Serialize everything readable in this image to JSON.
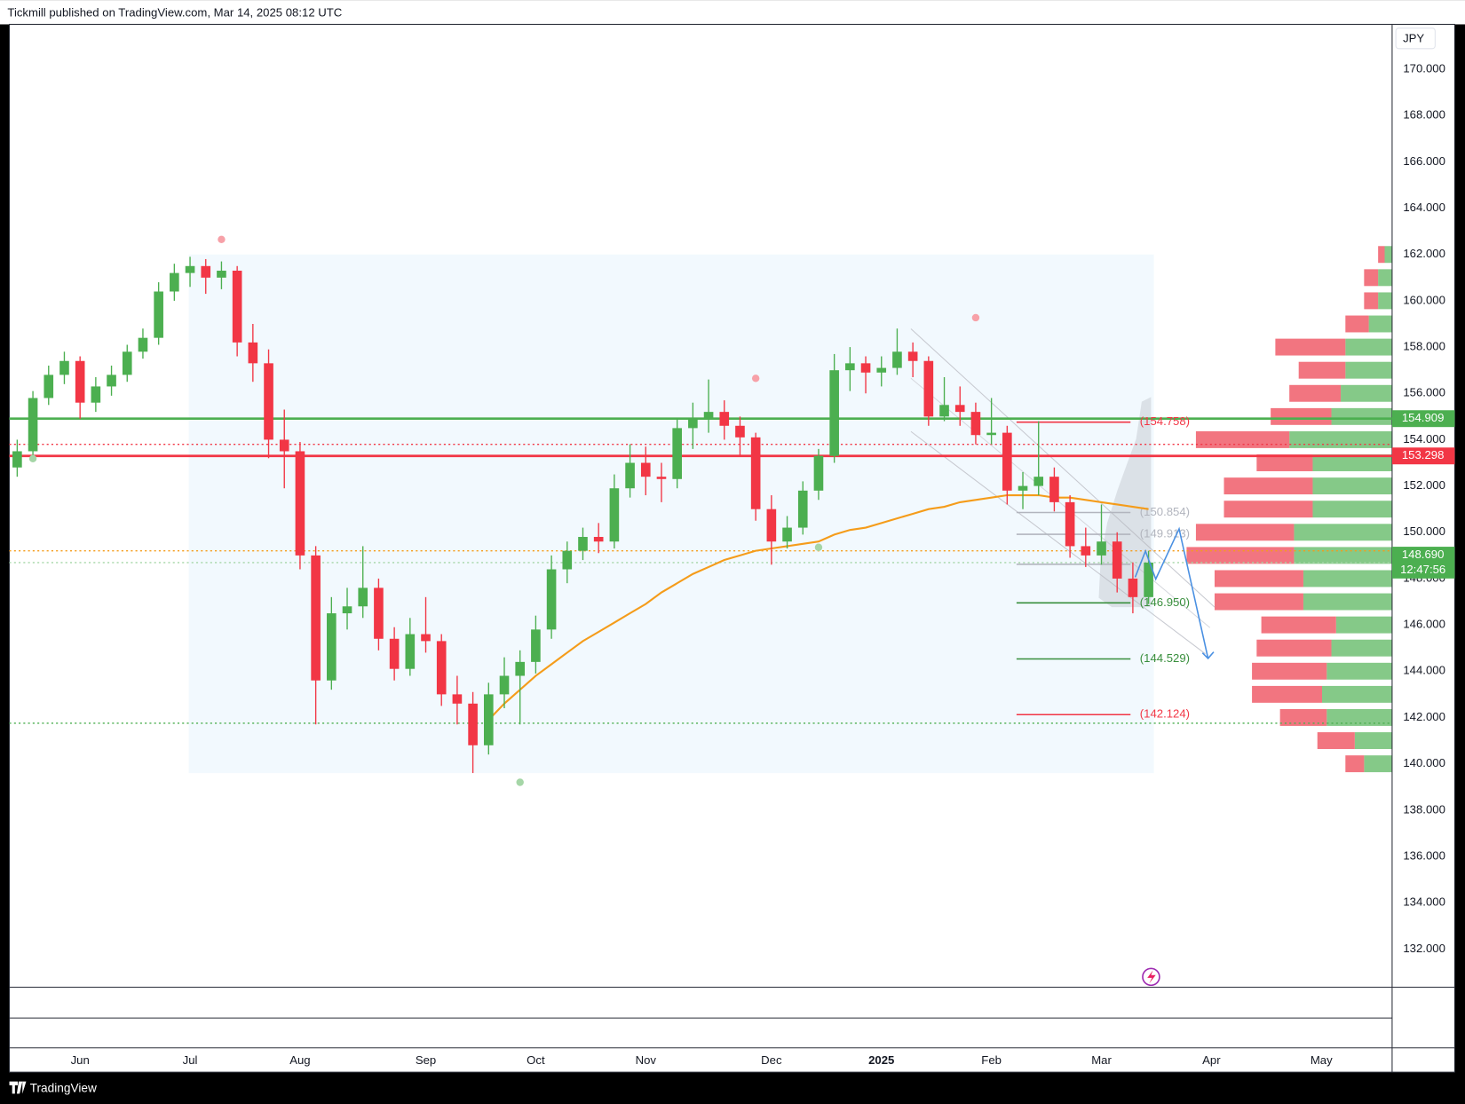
{
  "chart_data": {
    "type": "candlestick",
    "header": "Tickmill published on TradingView.com, Mar 14, 2025 08:12 UTC",
    "currency": "JPY",
    "brand": "TradingView",
    "categories": [
      null,
      null,
      null,
      null,
      "Jun",
      null,
      null,
      null,
      null,
      null,
      null,
      "Jul",
      null,
      null,
      null,
      null,
      null,
      null,
      "Aug",
      null,
      null,
      null,
      null,
      null,
      null,
      null,
      "Sep",
      null,
      null,
      null,
      null,
      null,
      null,
      "Oct",
      null,
      null,
      null,
      null,
      null,
      null,
      "Nov",
      null,
      null,
      null,
      null,
      null,
      null,
      null,
      "Dec",
      null,
      null,
      null,
      null,
      null,
      null,
      "2025",
      null,
      null,
      null,
      null,
      null,
      null,
      "Feb",
      null,
      null,
      null,
      null,
      null,
      null,
      "Mar",
      null,
      null,
      null,
      null,
      null,
      null,
      "Apr",
      null,
      null,
      null,
      null,
      null,
      null,
      "May",
      null,
      null,
      null,
      null
    ],
    "open": [
      152.8,
      153.5,
      155.8,
      156.8,
      157.4,
      155.6,
      156.3,
      156.8,
      157.8,
      158.4,
      160.4,
      161.2,
      161.5,
      161.0,
      161.3,
      158.2,
      157.3,
      154.0,
      153.5,
      149.0,
      143.6,
      146.5,
      146.8,
      147.6,
      145.4,
      144.1,
      145.6,
      145.3,
      143.0,
      142.6,
      140.8,
      143.0,
      143.8,
      144.4,
      145.8,
      148.4,
      149.2,
      149.8,
      149.6,
      151.9,
      153.0,
      152.4,
      152.3,
      154.5,
      154.9,
      155.2,
      154.6,
      154.1,
      151.0,
      149.6,
      150.2,
      151.8,
      153.3,
      157.0,
      157.3,
      156.9,
      157.1,
      157.8,
      157.4,
      155.0,
      155.5,
      155.2,
      154.2,
      154.3,
      151.8,
      152.0,
      152.4,
      151.3,
      149.4,
      149.0,
      149.6,
      148.0,
      147.2,
      null,
      null,
      null,
      null,
      null,
      null,
      null,
      null,
      null,
      null,
      null,
      null,
      null,
      null,
      null
    ],
    "high": [
      154.0,
      156.1,
      157.2,
      157.8,
      157.6,
      156.7,
      157.2,
      158.1,
      158.8,
      160.8,
      161.6,
      161.9,
      161.8,
      161.7,
      161.5,
      159.0,
      157.9,
      155.3,
      153.9,
      149.4,
      147.2,
      147.6,
      149.4,
      148.0,
      145.9,
      146.3,
      147.2,
      145.6,
      143.8,
      143.1,
      143.5,
      144.6,
      144.9,
      146.4,
      149.0,
      149.6,
      150.2,
      150.4,
      152.5,
      153.8,
      153.7,
      153.0,
      154.9,
      155.6,
      156.6,
      155.7,
      155.0,
      154.3,
      151.6,
      150.7,
      152.2,
      153.6,
      157.7,
      158.0,
      157.6,
      157.6,
      158.8,
      158.2,
      157.6,
      156.7,
      156.3,
      155.6,
      155.8,
      154.6,
      152.6,
      154.8,
      152.8,
      151.6,
      150.2,
      151.2,
      150.0,
      148.7,
      149.2,
      null,
      null,
      null,
      null,
      null,
      null,
      null,
      null,
      null,
      null,
      null,
      null,
      null,
      null,
      null
    ],
    "low": [
      152.4,
      153.2,
      155.5,
      156.4,
      154.9,
      155.2,
      155.9,
      156.5,
      157.5,
      158.1,
      160.0,
      160.6,
      160.3,
      160.5,
      157.6,
      156.5,
      153.2,
      151.9,
      148.4,
      141.7,
      143.2,
      145.8,
      146.3,
      144.9,
      143.6,
      143.8,
      144.8,
      142.5,
      141.7,
      139.6,
      140.4,
      142.4,
      141.7,
      143.9,
      145.4,
      147.8,
      148.8,
      149.1,
      149.3,
      151.5,
      151.6,
      151.3,
      151.9,
      153.6,
      154.3,
      154.0,
      153.3,
      150.5,
      148.6,
      149.3,
      149.9,
      151.4,
      153.0,
      156.1,
      156.0,
      156.3,
      156.8,
      156.7,
      154.6,
      154.8,
      154.6,
      153.8,
      153.8,
      151.2,
      151.0,
      151.6,
      150.9,
      148.9,
      148.5,
      148.6,
      147.4,
      146.5,
      146.9,
      null,
      null,
      null,
      null,
      null,
      null,
      null,
      null,
      null,
      null,
      null,
      null,
      null,
      null,
      null
    ],
    "close": [
      153.5,
      155.8,
      156.8,
      157.4,
      155.6,
      156.3,
      156.8,
      157.8,
      158.4,
      160.4,
      161.2,
      161.5,
      161.0,
      161.3,
      158.2,
      157.3,
      154.0,
      153.5,
      149.0,
      143.6,
      146.5,
      146.8,
      147.6,
      145.4,
      144.1,
      145.6,
      145.3,
      143.0,
      142.6,
      140.8,
      143.0,
      143.8,
      144.4,
      145.8,
      148.4,
      149.2,
      149.8,
      149.6,
      151.9,
      153.0,
      152.4,
      152.3,
      154.5,
      154.9,
      155.2,
      154.6,
      154.1,
      151.0,
      149.6,
      150.2,
      151.8,
      153.3,
      157.0,
      157.3,
      156.9,
      157.1,
      157.8,
      157.4,
      155.0,
      155.5,
      155.2,
      154.2,
      154.3,
      151.8,
      152.0,
      152.4,
      151.3,
      149.4,
      149.0,
      149.6,
      148.0,
      147.2,
      148.69,
      null,
      null,
      null,
      null,
      null,
      null,
      null,
      null,
      null,
      null,
      null,
      null,
      null,
      null,
      null
    ],
    "up_color": "#4caf50",
    "down_color": "#f23645",
    "moving_average": {
      "color": "#f59c1a",
      "values": [
        null,
        null,
        null,
        null,
        null,
        null,
        null,
        null,
        null,
        null,
        null,
        null,
        null,
        null,
        null,
        null,
        null,
        null,
        null,
        null,
        null,
        null,
        null,
        null,
        null,
        null,
        null,
        null,
        null,
        null,
        141.9,
        142.6,
        143.2,
        143.8,
        144.3,
        144.8,
        145.3,
        145.7,
        146.1,
        146.5,
        146.9,
        147.4,
        147.8,
        148.2,
        148.5,
        148.8,
        149.0,
        149.2,
        149.3,
        149.4,
        149.5,
        149.6,
        149.9,
        150.1,
        150.2,
        150.4,
        150.6,
        150.8,
        151.0,
        151.1,
        151.3,
        151.4,
        151.5,
        151.6,
        151.6,
        151.6,
        151.5,
        151.5,
        151.4,
        151.3,
        151.2,
        151.1,
        151.0,
        null,
        null,
        null,
        null,
        null,
        null,
        null,
        null,
        null,
        null,
        null,
        null,
        null,
        null,
        null
      ]
    },
    "pivot_high": [
      null,
      null,
      null,
      null,
      null,
      null,
      null,
      null,
      null,
      null,
      null,
      null,
      null,
      162.65,
      null,
      null,
      null,
      null,
      null,
      null,
      null,
      null,
      null,
      null,
      null,
      null,
      null,
      null,
      null,
      null,
      null,
      null,
      null,
      null,
      null,
      null,
      null,
      null,
      null,
      null,
      null,
      null,
      null,
      null,
      null,
      null,
      null,
      156.65,
      null,
      null,
      null,
      null,
      null,
      null,
      null,
      null,
      null,
      null,
      null,
      null,
      null,
      159.27,
      null,
      null,
      null,
      null,
      null,
      null,
      null,
      null,
      null,
      null,
      null,
      null,
      null,
      null,
      null,
      null,
      null,
      null,
      null,
      null,
      null,
      null,
      null,
      null,
      null,
      null
    ],
    "pivot_low": [
      null,
      153.18,
      null,
      null,
      null,
      null,
      null,
      null,
      null,
      null,
      null,
      null,
      null,
      null,
      null,
      null,
      null,
      null,
      null,
      null,
      null,
      null,
      null,
      null,
      null,
      null,
      null,
      null,
      null,
      null,
      null,
      null,
      139.2,
      null,
      null,
      null,
      null,
      null,
      null,
      null,
      null,
      null,
      null,
      null,
      null,
      null,
      null,
      null,
      null,
      null,
      null,
      149.35,
      null,
      null,
      null,
      null,
      null,
      null,
      null,
      null,
      null,
      null,
      null,
      null,
      null,
      null,
      null,
      null,
      null,
      null,
      null,
      null,
      null,
      null,
      null,
      null,
      null,
      null,
      null,
      null,
      null,
      null,
      null,
      null,
      null,
      null,
      null,
      null
    ],
    "pivot_high_color": "#f7a1a8",
    "pivot_low_color": "#a5d6a7",
    "ylim": [
      130.35,
      171.94
    ],
    "yticks": [
      {
        "value": 170,
        "label": "170.000"
      },
      {
        "value": 168,
        "label": "168.000"
      },
      {
        "value": 166,
        "label": "166.000"
      },
      {
        "value": 164,
        "label": "164.000"
      },
      {
        "value": 162,
        "label": "162.000"
      },
      {
        "value": 160,
        "label": "160.000"
      },
      {
        "value": 158,
        "label": "158.000"
      },
      {
        "value": 156,
        "label": "156.000"
      },
      {
        "value": 154,
        "label": "154.000"
      },
      {
        "value": 152,
        "label": "152.000"
      },
      {
        "value": 150,
        "label": "150.000"
      },
      {
        "value": 148,
        "label": "148.000"
      },
      {
        "value": 146,
        "label": "146.000"
      },
      {
        "value": 144,
        "label": "144.000"
      },
      {
        "value": 142,
        "label": "142.000"
      },
      {
        "value": 140,
        "label": "140.000"
      },
      {
        "value": 138,
        "label": "138.000"
      },
      {
        "value": 136,
        "label": "136.000"
      },
      {
        "value": 134,
        "label": "134.000"
      },
      {
        "value": 132,
        "label": "132.000"
      }
    ],
    "horizontal_lines": [
      {
        "value": 154.909,
        "label": "154.909",
        "color": "#4caf50"
      },
      {
        "value": 153.298,
        "label": "153.298",
        "color": "#f23645"
      }
    ],
    "last_price": {
      "value": 148.69,
      "label": "148.690",
      "countdown": "12:47:56",
      "color": "#4caf50"
    },
    "dotted_lines": [
      {
        "value": 153.8,
        "color": "#f23645"
      },
      {
        "value": 149.2,
        "color": "#f59c1a"
      },
      {
        "value": 148.69,
        "color": "#a5d6a7"
      },
      {
        "value": 141.75,
        "color": "#4caf50"
      }
    ],
    "levels": [
      {
        "value": 154.758,
        "label": "(154.758)",
        "color": "#f23645"
      },
      {
        "value": 150.854,
        "label": "(150.854)",
        "color": "#b2b5be"
      },
      {
        "value": 149.913,
        "label": "(149.913)",
        "color": "#b2b5be"
      },
      {
        "value": 148.62,
        "color": "#b2b5be"
      },
      {
        "value": 146.95,
        "label": "(146.950)",
        "color": "#388e3c"
      },
      {
        "value": 144.529,
        "label": "(144.529)",
        "color": "#388e3c"
      },
      {
        "value": 142.124,
        "label": "(142.124)",
        "color": "#f23645"
      }
    ],
    "shaded_range": [
      139.6,
      162.0
    ],
    "projection": {
      "color": "#4a90e2",
      "values": [
        148.06,
        149.19,
        147.98,
        150.15,
        144.55
      ]
    },
    "volume_profile": {
      "up_color": "#66bb6a",
      "down_color": "#ef5360",
      "prices": [
        140,
        141,
        142,
        143,
        144,
        145,
        146,
        147,
        148,
        149,
        150,
        151,
        152,
        153,
        154,
        155,
        156,
        157,
        158,
        159,
        160,
        161,
        162
      ],
      "up": [
        30,
        40,
        70,
        75,
        70,
        65,
        60,
        95,
        95,
        105,
        105,
        85,
        85,
        85,
        110,
        65,
        55,
        50,
        50,
        25,
        15,
        15,
        8
      ],
      "down": [
        20,
        40,
        50,
        75,
        80,
        80,
        80,
        95,
        95,
        115,
        105,
        95,
        95,
        60,
        100,
        65,
        55,
        50,
        75,
        25,
        15,
        15,
        7
      ]
    }
  }
}
